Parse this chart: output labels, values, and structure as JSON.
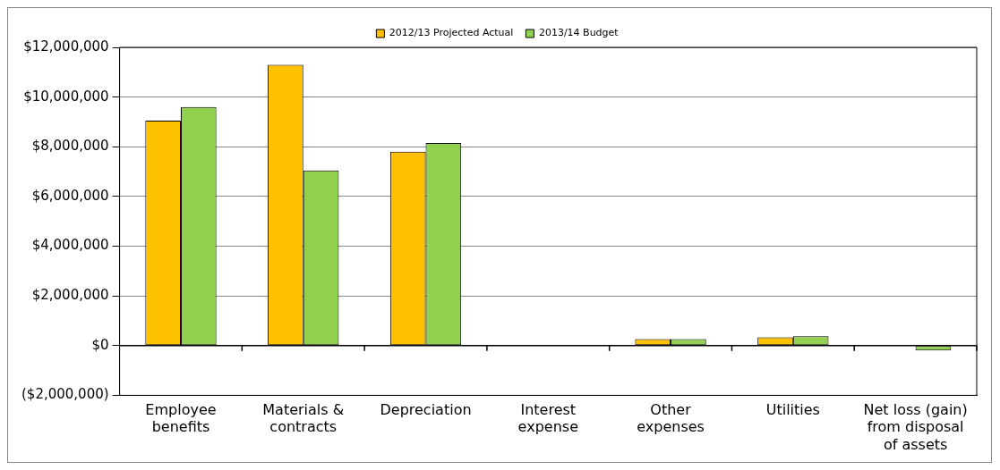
{
  "chart_data": {
    "type": "bar",
    "categories": [
      "Employee benefits",
      "Materials & contracts",
      "Depreciation",
      "Interest expense",
      "Other expenses",
      "Utilities",
      "Net loss (gain) from disposal of assets"
    ],
    "series": [
      {
        "name": "2012/13 Projected Actual",
        "color": "#ffc000",
        "values": [
          9050000,
          11300000,
          7800000,
          null,
          260000,
          330000,
          null
        ]
      },
      {
        "name": "2013/14 Budget",
        "color": "#92d050",
        "values": [
          9600000,
          7050000,
          8150000,
          null,
          260000,
          380000,
          -200000
        ]
      }
    ],
    "ylim": [
      -2000000,
      12000000
    ],
    "yticks": [
      {
        "value": -2000000,
        "label": "($2,000,000)"
      },
      {
        "value": 0,
        "label": "$0"
      },
      {
        "value": 2000000,
        "label": "$2,000,000"
      },
      {
        "value": 4000000,
        "label": "$4,000,000"
      },
      {
        "value": 6000000,
        "label": "$6,000,000"
      },
      {
        "value": 8000000,
        "label": "$8,000,000"
      },
      {
        "value": 10000000,
        "label": "$10,000,000"
      },
      {
        "value": 12000000,
        "label": "$12,000,000"
      }
    ],
    "grid": "y",
    "legend": "top"
  }
}
